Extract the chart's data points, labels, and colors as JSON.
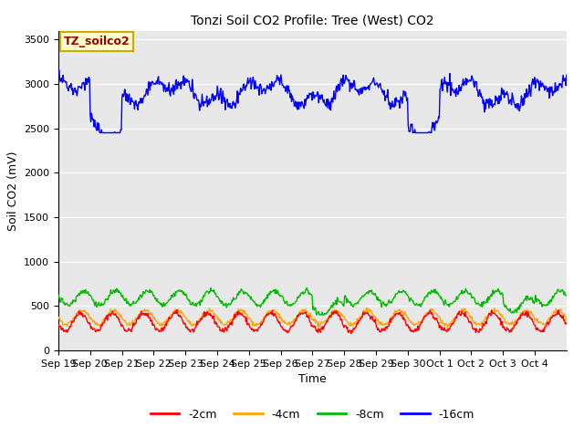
{
  "title": "Tonzi Soil CO2 Profile: Tree (West) CO2",
  "ylabel": "Soil CO2 (mV)",
  "xlabel": "Time",
  "watermark": "TZ_soilco2",
  "ylim": [
    0,
    3600
  ],
  "yticks": [
    0,
    500,
    1000,
    1500,
    2000,
    2500,
    3000,
    3500
  ],
  "bg_color": "#e8e8e8",
  "colors": {
    "-2cm": "#ff0000",
    "-4cm": "#ffa500",
    "-8cm": "#00bb00",
    "-16cm": "#0000ff"
  },
  "legend_labels": [
    "-2cm",
    "-4cm",
    "-8cm",
    "-16cm"
  ],
  "n_days": 16,
  "x_labels": [
    "Sep 19",
    "Sep 20",
    "Sep 21",
    "Sep 22",
    "Sep 23",
    "Sep 24",
    "Sep 25",
    "Sep 26",
    "Sep 27",
    "Sep 28",
    "Sep 29",
    "Sep 30",
    "Oct 1",
    "Oct 2",
    "Oct 3",
    "Oct 4"
  ],
  "seed": 42,
  "title_fontsize": 10,
  "axis_label_fontsize": 9,
  "tick_fontsize": 8
}
